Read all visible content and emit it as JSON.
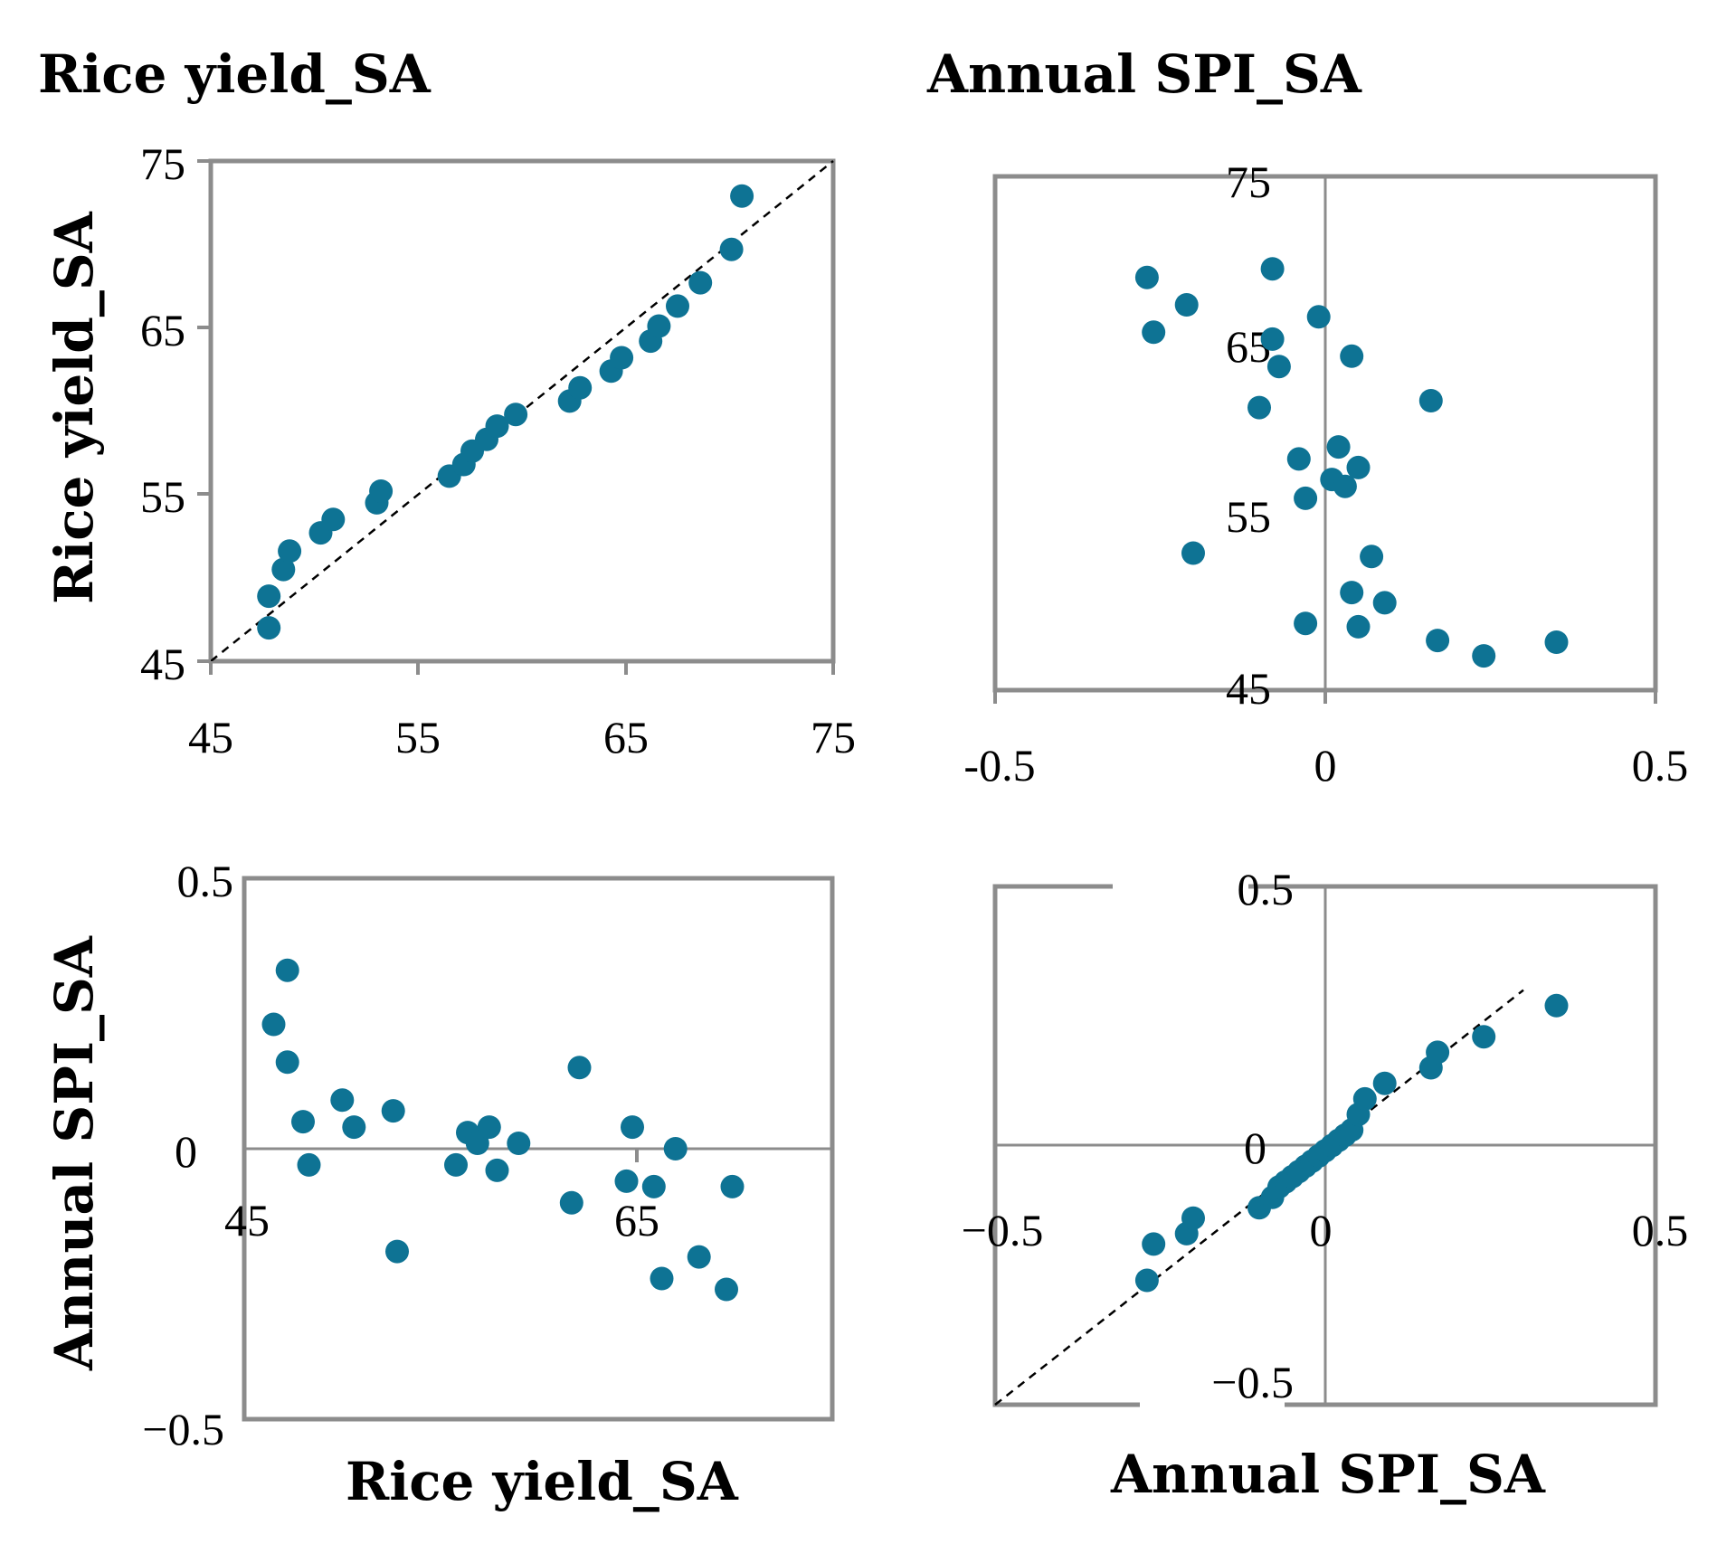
{
  "figure": {
    "col_headers": [
      "Rice yield_SA",
      "Annual SPI_SA"
    ],
    "row_labels": [
      "Rice yield_SA",
      "Annual SPI_SA"
    ],
    "bottom_labels": [
      "Rice yield_SA",
      "Annual SPI_SA"
    ]
  },
  "colors": {
    "marker": "#0e7394",
    "axis": "#8c8c8c",
    "diagonal": "#000000"
  },
  "chart_data": [
    {
      "type": "scatter",
      "panel": "top-left",
      "xlim": [
        45,
        75
      ],
      "ylim": [
        45,
        75
      ],
      "xticks": [
        "45",
        "55",
        "65",
        "75"
      ],
      "yticks": [
        "45",
        "55",
        "65",
        "75"
      ],
      "reference_line": "y = x (dashed)",
      "points": [
        [
          47.8,
          47.0
        ],
        [
          47.8,
          48.9
        ],
        [
          48.5,
          50.5
        ],
        [
          48.8,
          51.6
        ],
        [
          50.3,
          52.7
        ],
        [
          50.9,
          53.5
        ],
        [
          53.0,
          54.5
        ],
        [
          53.2,
          55.2
        ],
        [
          56.5,
          56.1
        ],
        [
          57.2,
          56.8
        ],
        [
          57.6,
          57.6
        ],
        [
          58.3,
          58.3
        ],
        [
          58.8,
          59.1
        ],
        [
          59.7,
          59.8
        ],
        [
          62.3,
          60.6
        ],
        [
          62.8,
          61.4
        ],
        [
          64.3,
          62.4
        ],
        [
          64.8,
          63.2
        ],
        [
          66.2,
          64.2
        ],
        [
          66.6,
          65.1
        ],
        [
          67.5,
          66.3
        ],
        [
          68.6,
          67.7
        ],
        [
          70.1,
          69.7
        ],
        [
          70.6,
          72.9
        ]
      ]
    },
    {
      "type": "scatter",
      "panel": "top-right",
      "xlim": [
        -0.5,
        0.5
      ],
      "ylim": [
        45,
        75
      ],
      "xticks": [
        "-0.5",
        "0",
        "0.5"
      ],
      "yticks": [
        "45",
        "55",
        "65",
        "75"
      ],
      "points": [
        [
          -0.27,
          69.1
        ],
        [
          -0.26,
          65.9
        ],
        [
          -0.21,
          67.5
        ],
        [
          -0.2,
          53.0
        ],
        [
          -0.1,
          61.5
        ],
        [
          -0.08,
          69.6
        ],
        [
          -0.08,
          65.5
        ],
        [
          -0.07,
          63.9
        ],
        [
          -0.04,
          58.5
        ],
        [
          -0.03,
          56.2
        ],
        [
          -0.03,
          48.9
        ],
        [
          -0.01,
          66.8
        ],
        [
          0.01,
          57.3
        ],
        [
          0.02,
          59.2
        ],
        [
          0.03,
          56.9
        ],
        [
          0.04,
          64.5
        ],
        [
          0.04,
          50.7
        ],
        [
          0.05,
          58.0
        ],
        [
          0.05,
          48.7
        ],
        [
          0.07,
          52.8
        ],
        [
          0.09,
          50.1
        ],
        [
          0.16,
          61.9
        ],
        [
          0.17,
          47.9
        ],
        [
          0.24,
          47.0
        ],
        [
          0.35,
          47.8
        ]
      ]
    },
    {
      "type": "scatter",
      "panel": "bottom-left",
      "xlim": [
        45,
        75
      ],
      "ylim": [
        -0.5,
        0.5
      ],
      "xticks": [
        "45",
        "65"
      ],
      "yticks": [
        "−0.5",
        "0",
        "0.5"
      ],
      "points": [
        [
          46.5,
          0.23
        ],
        [
          47.2,
          0.33
        ],
        [
          47.2,
          0.16
        ],
        [
          48.0,
          0.05
        ],
        [
          48.3,
          -0.03
        ],
        [
          50.0,
          0.09
        ],
        [
          50.6,
          0.04
        ],
        [
          52.6,
          0.07
        ],
        [
          52.8,
          -0.19
        ],
        [
          55.8,
          -0.03
        ],
        [
          56.4,
          0.03
        ],
        [
          56.9,
          0.01
        ],
        [
          57.5,
          0.04
        ],
        [
          57.9,
          -0.04
        ],
        [
          59.0,
          0.01
        ],
        [
          61.7,
          -0.1
        ],
        [
          62.1,
          0.15
        ],
        [
          64.5,
          -0.06
        ],
        [
          64.8,
          0.04
        ],
        [
          65.9,
          -0.07
        ],
        [
          66.3,
          -0.24
        ],
        [
          67.0,
          0.0
        ],
        [
          68.2,
          -0.2
        ],
        [
          69.6,
          -0.26
        ],
        [
          69.9,
          -0.07
        ]
      ]
    },
    {
      "type": "scatter",
      "panel": "bottom-right",
      "xlim": [
        -0.5,
        0.5
      ],
      "ylim": [
        -0.5,
        0.5
      ],
      "xticks": [
        "−0.5",
        "0",
        "0.5"
      ],
      "yticks": [
        "−0.5",
        "0",
        "0.5"
      ],
      "reference_line": "y = x (dashed)",
      "points": [
        [
          -0.27,
          -0.26
        ],
        [
          -0.26,
          -0.19
        ],
        [
          -0.21,
          -0.17
        ],
        [
          -0.2,
          -0.14
        ],
        [
          -0.1,
          -0.12
        ],
        [
          -0.08,
          -0.1
        ],
        [
          -0.07,
          -0.08
        ],
        [
          -0.06,
          -0.07
        ],
        [
          -0.05,
          -0.06
        ],
        [
          -0.04,
          -0.05
        ],
        [
          -0.03,
          -0.04
        ],
        [
          -0.02,
          -0.03
        ],
        [
          -0.01,
          -0.02
        ],
        [
          0.0,
          -0.01
        ],
        [
          0.01,
          0.0
        ],
        [
          0.02,
          0.01
        ],
        [
          0.03,
          0.02
        ],
        [
          0.04,
          0.03
        ],
        [
          0.05,
          0.06
        ],
        [
          0.06,
          0.09
        ],
        [
          0.09,
          0.12
        ],
        [
          0.16,
          0.15
        ],
        [
          0.17,
          0.18
        ],
        [
          0.24,
          0.21
        ],
        [
          0.35,
          0.27
        ]
      ]
    }
  ]
}
